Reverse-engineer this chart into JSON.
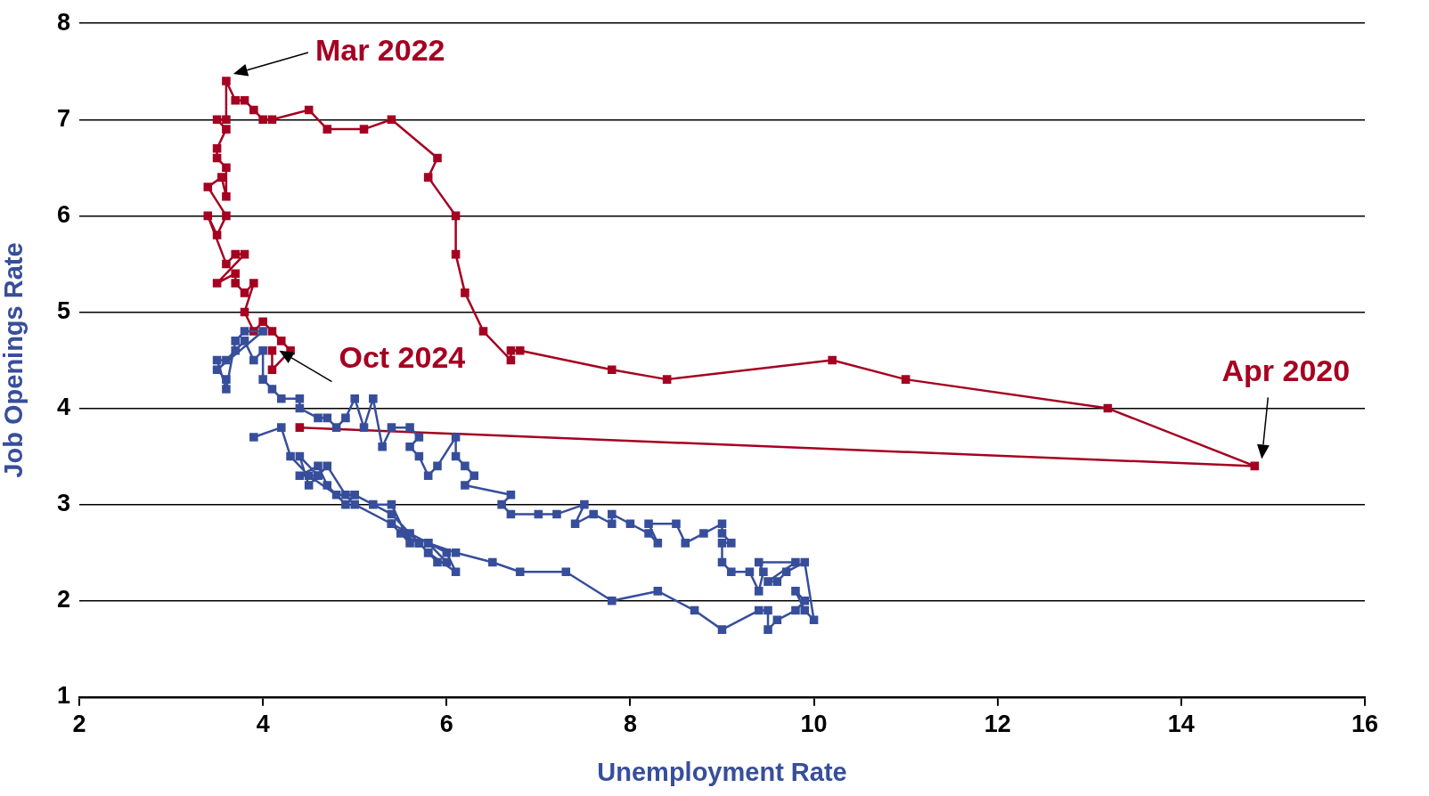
{
  "chart_data": {
    "type": "line",
    "xlabel": "Unemployment Rate",
    "ylabel": "Job Openings Rate",
    "xlim": [
      2,
      16
    ],
    "xticks": [
      2,
      4,
      6,
      8,
      10,
      12,
      14,
      16
    ],
    "ylim": [
      1,
      8
    ],
    "yticks": [
      1,
      2,
      3,
      4,
      5,
      6,
      7,
      8
    ],
    "grid": "y",
    "legend": false,
    "marker": "square",
    "line_style": "solid",
    "series": [
      {
        "color": "#374e9b",
        "x": [
          3.9,
          4.2,
          4.3,
          4.5,
          4.8,
          5.0,
          5.4,
          5.6,
          5.7,
          5.8,
          5.9,
          6.0,
          5.8,
          6.0,
          6.1,
          5.8,
          5.7,
          5.5,
          5.4,
          5.6,
          5.4,
          5.2,
          5.0,
          4.9,
          4.7,
          4.6,
          4.4,
          4.6,
          4.5,
          4.4,
          4.6,
          4.7,
          4.9,
          5.0,
          5.4,
          5.8,
          6.1,
          6.5,
          6.8,
          7.3,
          7.8,
          8.3,
          8.7,
          9.0,
          9.4,
          9.5,
          9.5,
          9.6,
          9.8,
          9.9,
          9.8,
          9.9,
          10.0,
          9.9,
          9.7,
          9.6,
          9.5,
          9.8,
          9.4,
          9.45,
          9.4,
          9.3,
          9.1,
          9.0,
          9.0,
          9.1,
          9.0,
          9.0,
          8.8,
          8.6,
          8.5,
          8.2,
          8.3,
          8.2,
          8.0,
          7.8,
          7.8,
          7.6,
          7.4,
          7.5,
          7.2,
          7.0,
          6.7,
          6.6,
          6.7,
          6.2,
          6.3,
          6.2,
          6.1,
          6.1,
          5.9,
          5.8,
          5.7,
          5.6,
          5.7,
          5.6,
          5.4,
          5.3,
          5.2,
          5.1,
          5.0,
          4.9,
          4.8,
          4.7,
          4.6,
          4.4,
          4.4,
          4.2,
          4.1,
          4.0,
          4.0,
          3.9,
          3.8,
          3.7,
          3.6,
          3.5,
          3.6,
          3.7,
          3.8,
          4.0,
          3.5,
          3.6
        ],
        "values": [
          3.7,
          3.8,
          3.5,
          3.3,
          3.1,
          3.1,
          2.9,
          2.7,
          2.6,
          2.5,
          2.4,
          2.4,
          2.6,
          2.5,
          2.3,
          2.5,
          2.6,
          2.7,
          2.8,
          2.6,
          3.0,
          3.0,
          3.1,
          3.0,
          3.2,
          3.4,
          3.3,
          3.3,
          3.2,
          3.5,
          3.3,
          3.4,
          3.1,
          3.0,
          2.8,
          2.6,
          2.5,
          2.4,
          2.3,
          2.3,
          2.0,
          2.1,
          1.9,
          1.7,
          1.9,
          1.9,
          1.7,
          1.8,
          1.9,
          2.0,
          2.1,
          1.9,
          1.8,
          2.4,
          2.3,
          2.2,
          2.2,
          2.4,
          2.4,
          2.3,
          2.1,
          2.3,
          2.3,
          2.4,
          2.6,
          2.6,
          2.7,
          2.8,
          2.7,
          2.6,
          2.8,
          2.8,
          2.6,
          2.7,
          2.8,
          2.9,
          2.8,
          2.9,
          2.8,
          3.0,
          2.9,
          2.9,
          2.9,
          3.0,
          3.1,
          3.2,
          3.3,
          3.4,
          3.5,
          3.7,
          3.4,
          3.3,
          3.5,
          3.6,
          3.7,
          3.8,
          3.8,
          3.6,
          4.1,
          3.8,
          4.1,
          3.9,
          3.8,
          3.9,
          3.9,
          4.0,
          4.1,
          4.1,
          4.2,
          4.3,
          4.6,
          4.5,
          4.7,
          4.6,
          4.5,
          4.5,
          4.2,
          4.7,
          4.8,
          4.8,
          4.4,
          4.3
        ]
      },
      {
        "color": "#a50021",
        "x": [
          4.4,
          14.8,
          13.2,
          11.0,
          10.2,
          8.4,
          7.8,
          6.8,
          6.7,
          6.7,
          6.4,
          6.2,
          6.1,
          6.1,
          5.8,
          5.9,
          5.4,
          5.1,
          4.7,
          4.5,
          4.1,
          4.0,
          3.9,
          3.8,
          3.7,
          3.6,
          3.6,
          3.5,
          3.6,
          3.5,
          3.5,
          3.6,
          3.6,
          3.55,
          3.4,
          3.6,
          3.5,
          3.4,
          3.6,
          3.7,
          3.8,
          3.5,
          3.7,
          3.7,
          3.8,
          3.9,
          3.8,
          3.9,
          4.0,
          4.1,
          4.2,
          4.3,
          4.1,
          4.1
        ],
        "values": [
          3.8,
          3.4,
          4.0,
          4.3,
          4.5,
          4.3,
          4.4,
          4.6,
          4.6,
          4.5,
          4.8,
          5.2,
          5.6,
          6.0,
          6.4,
          6.6,
          7.0,
          6.9,
          6.9,
          7.1,
          7.0,
          7.0,
          7.1,
          7.2,
          7.2,
          7.4,
          7.0,
          7.0,
          6.9,
          6.7,
          6.6,
          6.5,
          6.2,
          6.4,
          6.3,
          6.0,
          5.8,
          6.0,
          5.5,
          5.6,
          5.6,
          5.3,
          5.4,
          5.3,
          5.2,
          5.3,
          5.0,
          4.8,
          4.9,
          4.8,
          4.7,
          4.6,
          4.4,
          4.6
        ]
      }
    ],
    "annotations": [
      {
        "text": "Mar 2022",
        "x": 3.6,
        "y": 7.4
      },
      {
        "text": "Oct 2024",
        "x": 4.1,
        "y": 4.6
      },
      {
        "text": "Apr 2020",
        "x": 14.8,
        "y": 3.4
      }
    ]
  }
}
